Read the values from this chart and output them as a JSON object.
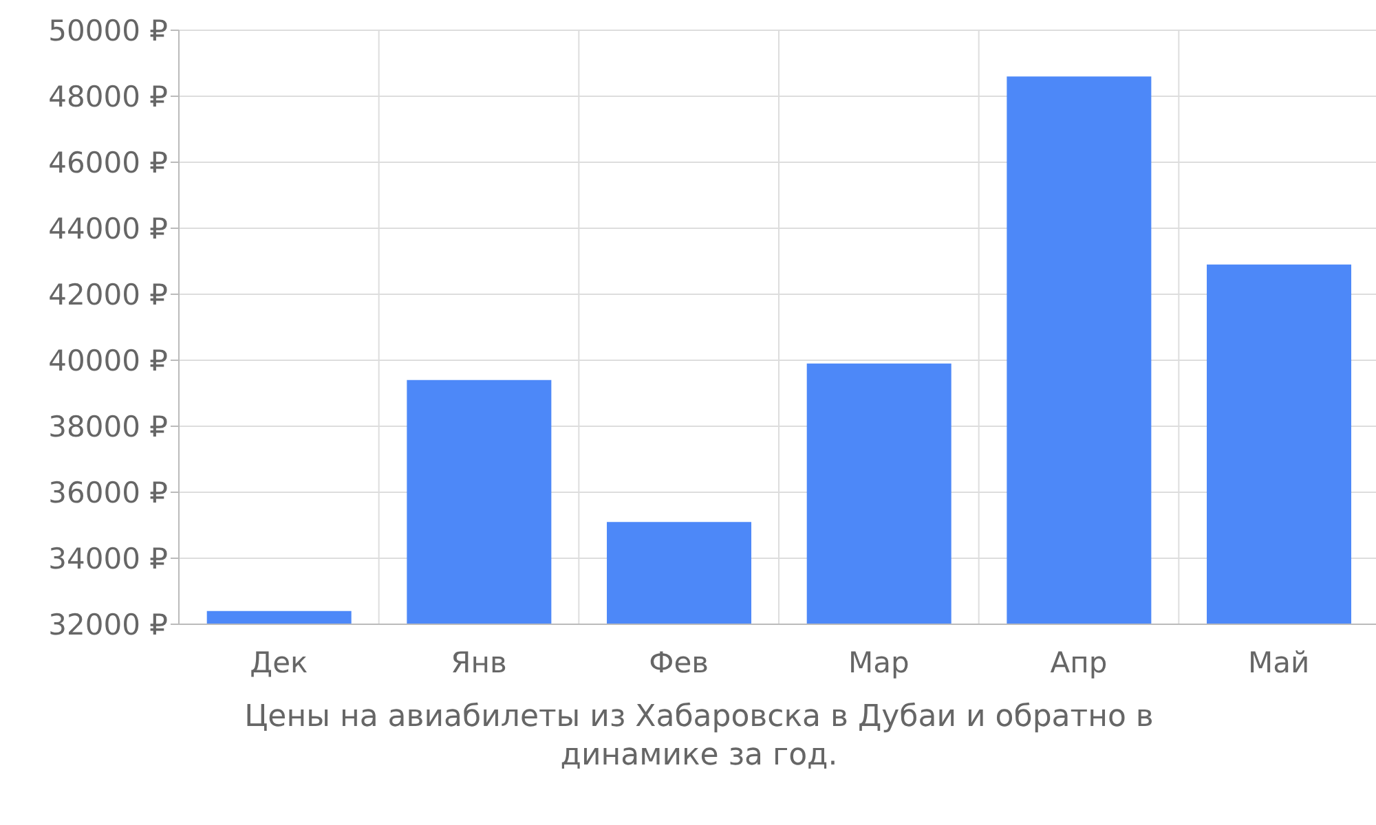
{
  "chart_data": {
    "type": "bar",
    "categories": [
      "Дек",
      "Янв",
      "Фев",
      "Мар",
      "Апр",
      "Май"
    ],
    "values": [
      32400,
      39400,
      35100,
      39900,
      48600,
      42900
    ],
    "color": "#4d88f8",
    "ylim": [
      32000,
      50000
    ],
    "yticks": [
      {
        "value": 32000,
        "label": "32000 ₽"
      },
      {
        "value": 34000,
        "label": "34000 ₽"
      },
      {
        "value": 36000,
        "label": "36000 ₽"
      },
      {
        "value": 38000,
        "label": "38000 ₽"
      },
      {
        "value": 40000,
        "label": "40000 ₽"
      },
      {
        "value": 42000,
        "label": "42000 ₽"
      },
      {
        "value": 44000,
        "label": "44000 ₽"
      },
      {
        "value": 46000,
        "label": "46000 ₽"
      },
      {
        "value": 48000,
        "label": "48000 ₽"
      },
      {
        "value": 50000,
        "label": "50000 ₽"
      }
    ],
    "grid": true,
    "annotations": [
      "Цены на авиабилеты из Хабаровска в Дубаи и обратно в динамике за год."
    ]
  }
}
